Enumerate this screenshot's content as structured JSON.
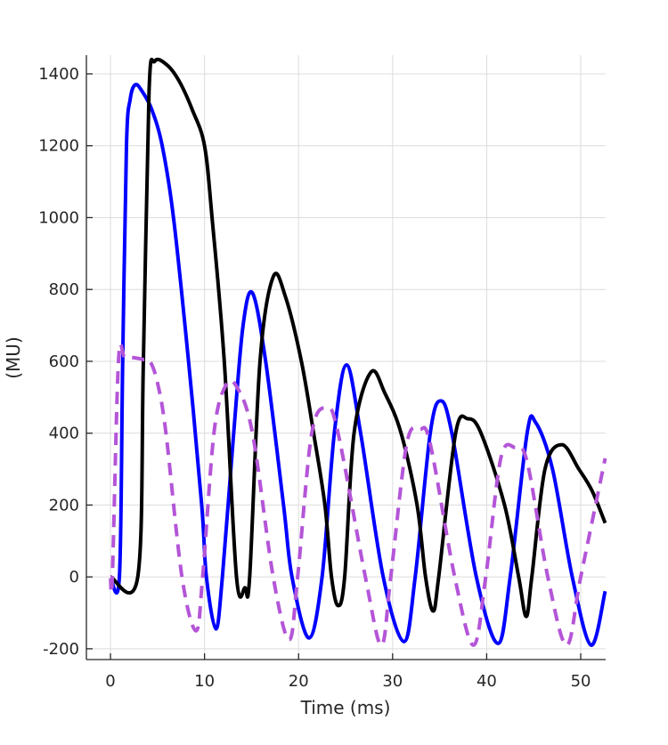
{
  "chart_data": {
    "type": "line",
    "title": "",
    "xlabel": "Time (ms)",
    "ylabel": "(MU)",
    "xlim": [
      -2.56,
      52.65
    ],
    "ylim": [
      -230,
      1452
    ],
    "xticks": [
      0,
      10,
      20,
      30,
      40,
      50
    ],
    "yticks": [
      -200,
      0,
      200,
      400,
      600,
      800,
      1000,
      1200,
      1400
    ],
    "grid": true,
    "legend": "none",
    "series": [
      {
        "color": "#0000ff",
        "style": "solid",
        "x": [
          0,
          0.95,
          1.3,
          1.7,
          2.1,
          2.65,
          3.4,
          4.4,
          5.5,
          6.7,
          8.3,
          9.7,
          10.2,
          11.2,
          11.9,
          13.1,
          14.1,
          15.1,
          16.5,
          18.4,
          19.3,
          21.1,
          22.5,
          23.8,
          25.1,
          26.6,
          29.0,
          31.2,
          32.4,
          34.0,
          35.1,
          36.3,
          38.9,
          41.2,
          42.5,
          44.3,
          45.2,
          47.0,
          49.1,
          51.1,
          52.6
        ],
        "y": [
          0,
          0,
          600,
          1200,
          1330,
          1370,
          1350,
          1300,
          1200,
          1000,
          600,
          200,
          0,
          -145,
          0,
          400,
          700,
          790,
          600,
          200,
          0,
          -170,
          0,
          400,
          590,
          400,
          0,
          -180,
          0,
          400,
          490,
          400,
          0,
          -185,
          0,
          400,
          430,
          300,
          0,
          -190,
          -40
        ]
      },
      {
        "color": "#000000",
        "style": "solid",
        "x": [
          0,
          2.9,
          3.5,
          4.1,
          4.7,
          6.0,
          7.3,
          8.7,
          10.0,
          10.8,
          12.1,
          13.4,
          14.3,
          14.8,
          15.9,
          17.3,
          18.6,
          20.3,
          21.6,
          22.8,
          23.5,
          24.2,
          24.9,
          25.9,
          27.7,
          29.2,
          30.9,
          32.6,
          33.5,
          34.3,
          34.9,
          36.7,
          38.0,
          39.4,
          41.9,
          43.4,
          44.2,
          44.8,
          46.2,
          48.0,
          49.8,
          51.2,
          52.6
        ],
        "y": [
          0,
          0,
          600,
          1350,
          1435,
          1425,
          1380,
          1300,
          1200,
          1000,
          600,
          0,
          -30,
          0,
          600,
          835,
          780,
          600,
          400,
          200,
          0,
          -80,
          0,
          400,
          570,
          510,
          400,
          200,
          0,
          -95,
          0,
          400,
          440,
          400,
          200,
          0,
          -110,
          0,
          300,
          368,
          300,
          240,
          150
        ]
      },
      {
        "color": "#b455d8",
        "style": "dashed",
        "x": [
          0,
          0.2,
          0.85,
          1.5,
          2.5,
          3.5,
          4.2,
          5.0,
          5.9,
          7.6,
          9.1,
          9.8,
          11.0,
          12.2,
          13.4,
          15.1,
          17.3,
          19.0,
          19.9,
          21.4,
          23.0,
          24.2,
          27.1,
          28.8,
          29.8,
          31.5,
          32.9,
          34.0,
          36.6,
          38.6,
          39.9,
          41.5,
          43.0,
          44.3,
          46.5,
          48.5,
          50.0,
          52.6
        ],
        "y": [
          0,
          0,
          600,
          612,
          610,
          605,
          600,
          540,
          400,
          0,
          -150,
          0,
          400,
          530,
          530,
          400,
          0,
          -175,
          0,
          400,
          470,
          400,
          0,
          -190,
          0,
          370,
          410,
          370,
          0,
          -190,
          0,
          330,
          360,
          320,
          0,
          -190,
          0,
          330
        ]
      }
    ]
  }
}
